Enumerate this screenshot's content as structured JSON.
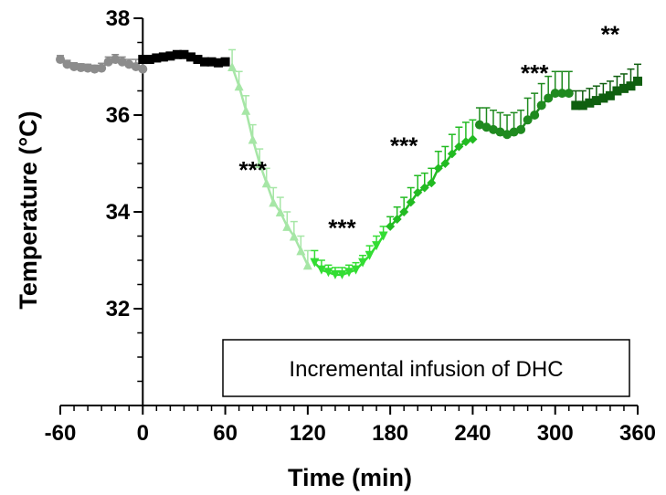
{
  "chart_data": {
    "type": "line",
    "xlabel": "Time (min)",
    "ylabel": "Temperature (°C)",
    "xlim": [
      -60,
      360
    ],
    "ylim": [
      30,
      38
    ],
    "x_ticks": [
      -60,
      0,
      60,
      120,
      180,
      240,
      300,
      360
    ],
    "y_ticks": [
      32,
      34,
      36,
      38
    ],
    "grid": false,
    "annotation": "Incremental infusion of DHC",
    "series": [
      {
        "color": "#8c8c8c",
        "marker": "circle",
        "x": [
          -60,
          -55,
          -50,
          -45,
          -40,
          -35,
          -30,
          -25,
          -20,
          -15,
          -10,
          -5,
          0
        ],
        "y": [
          37.15,
          37.05,
          37.0,
          36.98,
          36.97,
          36.95,
          36.97,
          37.1,
          37.15,
          37.1,
          37.05,
          37.0,
          36.95
        ],
        "err": [
          0.08,
          0.08,
          0.08,
          0.08,
          0.08,
          0.08,
          0.1,
          0.1,
          0.1,
          0.1,
          0.1,
          0.15,
          0.15
        ]
      },
      {
        "color": "#000000",
        "marker": "square",
        "x": [
          0,
          5,
          10,
          15,
          20,
          25,
          30,
          35,
          40,
          45,
          50,
          55,
          60
        ],
        "y": [
          37.15,
          37.15,
          37.18,
          37.2,
          37.22,
          37.25,
          37.25,
          37.2,
          37.15,
          37.1,
          37.1,
          37.08,
          37.1
        ],
        "err": [
          0.05,
          0.05,
          0.05,
          0.05,
          0.05,
          0.05,
          0.05,
          0.05,
          0.05,
          0.05,
          0.05,
          0.05,
          0.05
        ]
      },
      {
        "color": "#a6e6a6",
        "marker": "triangle",
        "x": [
          65,
          70,
          75,
          80,
          85,
          90,
          95,
          100,
          105,
          110,
          115,
          120
        ],
        "y": [
          37.0,
          36.6,
          36.1,
          35.5,
          35.0,
          34.6,
          34.2,
          34.0,
          33.7,
          33.5,
          33.2,
          32.9
        ],
        "err": [
          0.35,
          0.3,
          0.3,
          0.3,
          0.3,
          0.3,
          0.3,
          0.3,
          0.3,
          0.3,
          0.3,
          0.3
        ]
      },
      {
        "color": "#33dd33",
        "marker": "triangle-down",
        "x": [
          125,
          130,
          135,
          140,
          145,
          150,
          155,
          160,
          165,
          170,
          175
        ],
        "y": [
          32.95,
          32.8,
          32.75,
          32.7,
          32.7,
          32.75,
          32.8,
          32.95,
          33.1,
          33.3,
          33.5
        ],
        "err": [
          0.25,
          0.2,
          0.15,
          0.15,
          0.15,
          0.15,
          0.15,
          0.15,
          0.2,
          0.2,
          0.2
        ]
      },
      {
        "color": "#22bb22",
        "marker": "diamond",
        "x": [
          180,
          185,
          190,
          195,
          200,
          205,
          210,
          215,
          220,
          225,
          230,
          235,
          240
        ],
        "y": [
          33.7,
          33.85,
          34.0,
          34.2,
          34.4,
          34.5,
          34.6,
          34.9,
          35.0,
          35.2,
          35.35,
          35.45,
          35.5
        ],
        "err": [
          0.2,
          0.25,
          0.3,
          0.3,
          0.35,
          0.3,
          0.3,
          0.35,
          0.35,
          0.4,
          0.4,
          0.4,
          0.4
        ]
      },
      {
        "color": "#1f8a1f",
        "marker": "circle",
        "x": [
          245,
          250,
          255,
          260,
          265,
          270,
          275,
          280,
          285,
          290,
          295,
          300,
          305,
          310
        ],
        "y": [
          35.8,
          35.75,
          35.7,
          35.65,
          35.6,
          35.65,
          35.7,
          35.9,
          36.0,
          36.2,
          36.35,
          36.45,
          36.45,
          36.45
        ],
        "err": [
          0.35,
          0.4,
          0.4,
          0.4,
          0.4,
          0.4,
          0.4,
          0.45,
          0.45,
          0.45,
          0.45,
          0.45,
          0.45,
          0.45
        ]
      },
      {
        "color": "#0f5f0f",
        "marker": "square",
        "x": [
          315,
          320,
          325,
          330,
          335,
          340,
          345,
          350,
          355,
          360
        ],
        "y": [
          36.2,
          36.2,
          36.25,
          36.3,
          36.35,
          36.4,
          36.5,
          36.55,
          36.6,
          36.7
        ],
        "err": [
          0.3,
          0.3,
          0.3,
          0.3,
          0.3,
          0.3,
          0.3,
          0.3,
          0.35,
          0.35
        ]
      }
    ],
    "significance_labels": [
      {
        "text": "***",
        "x": 80,
        "y": 34.7
      },
      {
        "text": "***",
        "x": 145,
        "y": 33.5
      },
      {
        "text": "***",
        "x": 190,
        "y": 35.2
      },
      {
        "text": "***",
        "x": 285,
        "y": 36.7
      },
      {
        "text": "**",
        "x": 340,
        "y": 37.5
      }
    ]
  }
}
